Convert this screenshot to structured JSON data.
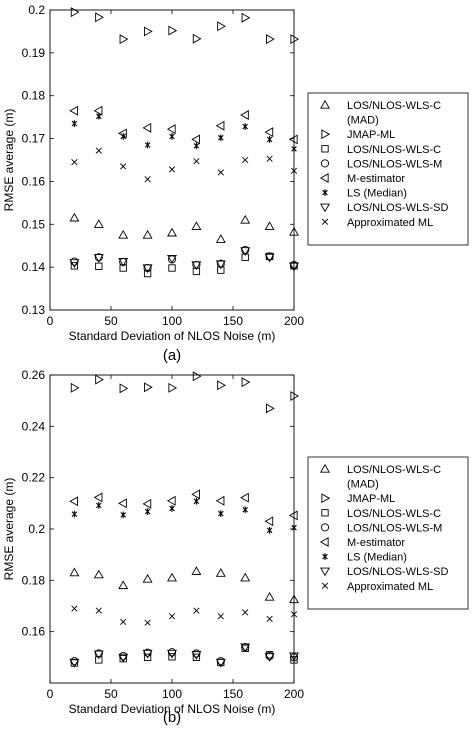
{
  "legend_entries": [
    {
      "label": "LOS/NLOS-WLS-C",
      "label2": "(MAD)",
      "marker": "triangle-up"
    },
    {
      "label": "JMAP-ML",
      "marker": "triangle-right"
    },
    {
      "label": "LOS/NLOS-WLS-C",
      "marker": "square"
    },
    {
      "label": "LOS/NLOS-WLS-M",
      "marker": "circle"
    },
    {
      "label": "M-estimator",
      "marker": "triangle-left"
    },
    {
      "label": "LS (Median)",
      "marker": "asterisk"
    },
    {
      "label": "LOS/NLOS-WLS-SD",
      "marker": "triangle-down"
    },
    {
      "label": "Approximated ML",
      "marker": "x"
    }
  ],
  "chart_data": [
    {
      "type": "scatter",
      "caption": "(a)",
      "xlabel": "Standard Deviation of NLOS Noise (m)",
      "ylabel": "RMSE average (m)",
      "xlim": [
        0,
        200
      ],
      "ylim": [
        0.13,
        0.2
      ],
      "xticks": [
        0,
        50,
        100,
        150,
        200
      ],
      "yticks": [
        0.13,
        0.14,
        0.15,
        0.16,
        0.17,
        0.18,
        0.19,
        0.2
      ],
      "ytick_labels": [
        "0.13",
        "0.14",
        "0.15",
        "0.16",
        "0.17",
        "0.18",
        "0.19",
        "0.2"
      ],
      "grid": false,
      "legend_position": "right",
      "x": [
        20,
        40,
        60,
        80,
        100,
        120,
        140,
        160,
        180,
        200
      ],
      "series": [
        {
          "name": "LOS/NLOS-WLS-C (MAD)",
          "marker": "triangle-up",
          "values": [
            0.1515,
            0.15,
            0.1475,
            0.1475,
            0.148,
            0.1495,
            0.1465,
            0.151,
            0.1495,
            0.1482
          ]
        },
        {
          "name": "JMAP-ML",
          "marker": "triangle-right",
          "values": [
            0.1995,
            0.1983,
            0.1932,
            0.195,
            0.1952,
            0.1933,
            0.1962,
            0.1982,
            0.1932,
            0.1932
          ]
        },
        {
          "name": "LOS/NLOS-WLS-C",
          "marker": "square",
          "values": [
            0.1403,
            0.1402,
            0.1398,
            0.1385,
            0.1398,
            0.139,
            0.1393,
            0.1423,
            0.1425,
            0.1403
          ]
        },
        {
          "name": "LOS/NLOS-WLS-M",
          "marker": "circle",
          "values": [
            0.1413,
            0.1423,
            0.1412,
            0.1398,
            0.1418,
            0.1405,
            0.1408,
            0.144,
            0.1425,
            0.1405
          ]
        },
        {
          "name": "M-estimator",
          "marker": "triangle-left",
          "values": [
            0.1765,
            0.1765,
            0.1712,
            0.1725,
            0.1722,
            0.1698,
            0.173,
            0.1755,
            0.1715,
            0.1698
          ]
        },
        {
          "name": "LS (Median)",
          "marker": "asterisk",
          "values": [
            0.1735,
            0.1752,
            0.1705,
            0.1685,
            0.1705,
            0.1683,
            0.1702,
            0.1728,
            0.1698,
            0.1676
          ]
        },
        {
          "name": "LOS/NLOS-WLS-SD",
          "marker": "triangle-down",
          "values": [
            0.141,
            0.1422,
            0.1413,
            0.1398,
            0.142,
            0.1405,
            0.1407,
            0.1438,
            0.1423,
            0.1402
          ]
        },
        {
          "name": "Approximated ML",
          "marker": "x",
          "values": [
            0.1645,
            0.1672,
            0.1635,
            0.1605,
            0.1628,
            0.1647,
            0.1621,
            0.165,
            0.1653,
            0.1625
          ]
        }
      ]
    },
    {
      "type": "scatter",
      "caption": "(b)",
      "xlabel": "Standard Deviation of NLOS Noise (m)",
      "ylabel": "RMSE average (m)",
      "xlim": [
        0,
        200
      ],
      "ylim": [
        0.14,
        0.26
      ],
      "xticks": [
        0,
        50,
        100,
        150,
        200
      ],
      "yticks": [
        0.16,
        0.18,
        0.2,
        0.22,
        0.24,
        0.26
      ],
      "ytick_labels": [
        "0.16",
        "0.18",
        "0.2",
        "0.22",
        "0.24",
        "0.26"
      ],
      "grid": false,
      "legend_position": "right",
      "x": [
        20,
        40,
        60,
        80,
        100,
        120,
        140,
        160,
        180,
        200
      ],
      "series": [
        {
          "name": "LOS/NLOS-WLS-C (MAD)",
          "marker": "triangle-up",
          "values": [
            0.183,
            0.1822,
            0.178,
            0.1805,
            0.181,
            0.1835,
            0.1828,
            0.181,
            0.1735,
            0.1725
          ]
        },
        {
          "name": "JMAP-ML",
          "marker": "triangle-right",
          "values": [
            0.255,
            0.2582,
            0.2548,
            0.2552,
            0.255,
            0.2595,
            0.256,
            0.2572,
            0.247,
            0.2518
          ]
        },
        {
          "name": "LOS/NLOS-WLS-C",
          "marker": "square",
          "values": [
            0.1478,
            0.149,
            0.1495,
            0.15,
            0.1502,
            0.15,
            0.148,
            0.1535,
            0.151,
            0.149
          ]
        },
        {
          "name": "LOS/NLOS-WLS-M",
          "marker": "circle",
          "values": [
            0.1485,
            0.1515,
            0.1505,
            0.1518,
            0.152,
            0.1515,
            0.1485,
            0.154,
            0.1505,
            0.15
          ]
        },
        {
          "name": "M-estimator",
          "marker": "triangle-left",
          "values": [
            0.2108,
            0.2123,
            0.21,
            0.2098,
            0.211,
            0.2135,
            0.211,
            0.2122,
            0.203,
            0.2053
          ]
        },
        {
          "name": "LS (Median)",
          "marker": "asterisk",
          "values": [
            0.2058,
            0.2092,
            0.2055,
            0.2068,
            0.208,
            0.2108,
            0.206,
            0.2075,
            0.1995,
            0.2005
          ]
        },
        {
          "name": "LOS/NLOS-WLS-SD",
          "marker": "triangle-down",
          "values": [
            0.148,
            0.1512,
            0.15,
            0.1515,
            0.1515,
            0.151,
            0.148,
            0.154,
            0.1502,
            0.1505
          ]
        },
        {
          "name": "Approximated ML",
          "marker": "x",
          "values": [
            0.169,
            0.1682,
            0.1638,
            0.1635,
            0.166,
            0.1682,
            0.166,
            0.1675,
            0.165,
            0.1668
          ]
        }
      ]
    }
  ]
}
